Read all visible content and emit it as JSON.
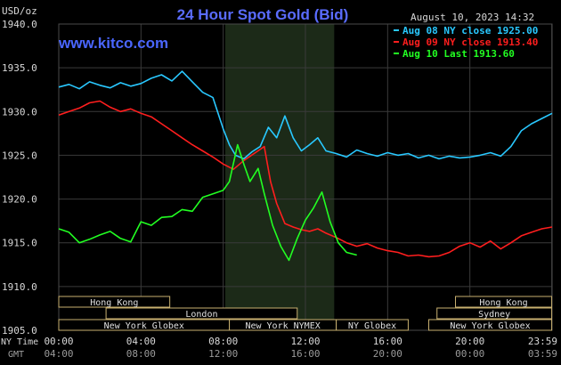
{
  "header": {
    "title": "24 Hour Spot Gold (Bid)",
    "date": "August 10, 2023 14:32",
    "watermark": "www.kitco.com",
    "unit": "USD/oz"
  },
  "colors": {
    "background": "#000000",
    "grid": "#3a3a3a",
    "axis_text": "#d8d8d8",
    "title": "#5a6cff",
    "watermark": "#4a66ff",
    "session_shade": "#1c2a18",
    "aug08": "#29c8ff",
    "aug09": "#ff1e1e",
    "aug10": "#22ff22",
    "market_box_border": "#c8b070"
  },
  "chart_data": {
    "type": "line",
    "title": "24 Hour Spot Gold (Bid)",
    "ylabel": "USD/oz",
    "ylim": [
      1905,
      1940
    ],
    "xlim": [
      0,
      24
    ],
    "grid": true,
    "legend": "top-right",
    "y_ticks": [
      "1940.0",
      "1935.0",
      "1930.0",
      "1925.0",
      "1920.0",
      "1915.0",
      "1910.0",
      "1905.0"
    ],
    "x_ticks": [
      0,
      4,
      8,
      12,
      16,
      20,
      23.983
    ],
    "x_tick_labels_ny": [
      "00:00",
      "04:00",
      "08:00",
      "12:00",
      "16:00",
      "20:00",
      "23:59"
    ],
    "x_tick_labels_gmt": [
      "04:00",
      "08:00",
      "12:00",
      "16:00",
      "20:00",
      "00:00",
      "03:59"
    ],
    "x_axis_names": {
      "ny": "NY Time",
      "gmt": "GMT"
    },
    "highlight_range": [
      8.1,
      13.4
    ],
    "series": [
      {
        "name": "Aug 08 NY close 1925.00",
        "color": "#29c8ff",
        "x": [
          0,
          0.5,
          1,
          1.5,
          2,
          2.5,
          3,
          3.5,
          4,
          4.5,
          5,
          5.5,
          6,
          6.5,
          7,
          7.5,
          8,
          8.3,
          8.6,
          9,
          9.4,
          9.8,
          10.2,
          10.6,
          11,
          11.4,
          11.8,
          12.2,
          12.6,
          13,
          13.5,
          14,
          14.5,
          15,
          15.5,
          16,
          16.5,
          17,
          17.5,
          18,
          18.5,
          19,
          19.5,
          20,
          20.5,
          21,
          21.5,
          22,
          22.5,
          23,
          23.5,
          24
        ],
        "y": [
          1932.8,
          1933.1,
          1932.6,
          1933.4,
          1933.0,
          1932.7,
          1933.3,
          1932.9,
          1933.2,
          1933.8,
          1934.2,
          1933.5,
          1934.6,
          1933.4,
          1932.2,
          1931.6,
          1928.0,
          1926.2,
          1925.0,
          1924.6,
          1925.4,
          1926.0,
          1928.2,
          1927.0,
          1929.5,
          1927.0,
          1925.5,
          1926.2,
          1927.0,
          1925.5,
          1925.2,
          1924.8,
          1925.6,
          1925.2,
          1924.9,
          1925.3,
          1925.0,
          1925.2,
          1924.7,
          1925.0,
          1924.6,
          1924.9,
          1924.7,
          1924.8,
          1925.0,
          1925.3,
          1924.9,
          1926.0,
          1927.8,
          1928.6,
          1929.2,
          1929.8
        ]
      },
      {
        "name": "Aug 09 NY close 1913.40",
        "color": "#ff1e1e",
        "x": [
          0,
          0.5,
          1,
          1.5,
          2,
          2.5,
          3,
          3.5,
          4,
          4.5,
          5,
          5.5,
          6,
          6.5,
          7,
          7.5,
          8,
          8.5,
          9,
          9.5,
          10,
          10.3,
          10.6,
          11,
          11.4,
          11.8,
          12.2,
          12.6,
          13,
          13.5,
          14,
          14.5,
          15,
          15.5,
          16,
          16.5,
          17,
          17.5,
          18,
          18.5,
          19,
          19.5,
          20,
          20.5,
          21,
          21.5,
          22,
          22.5,
          23,
          23.5,
          24
        ],
        "y": [
          1929.6,
          1930.0,
          1930.4,
          1931.0,
          1931.2,
          1930.5,
          1930.0,
          1930.3,
          1929.8,
          1929.4,
          1928.6,
          1927.8,
          1927.0,
          1926.2,
          1925.5,
          1924.8,
          1924.0,
          1923.4,
          1924.4,
          1925.2,
          1926.0,
          1922.0,
          1919.5,
          1917.2,
          1916.8,
          1916.5,
          1916.3,
          1916.6,
          1916.1,
          1915.6,
          1915.0,
          1914.6,
          1914.9,
          1914.4,
          1914.1,
          1913.9,
          1913.5,
          1913.6,
          1913.4,
          1913.5,
          1913.9,
          1914.6,
          1915.0,
          1914.5,
          1915.2,
          1914.3,
          1915.0,
          1915.8,
          1916.2,
          1916.6,
          1916.8
        ]
      },
      {
        "name": "Aug 10 Last 1913.60",
        "color": "#22ff22",
        "x": [
          0,
          0.5,
          1,
          1.5,
          2,
          2.5,
          3,
          3.5,
          4,
          4.5,
          5,
          5.5,
          6,
          6.5,
          7,
          7.5,
          8,
          8.3,
          8.7,
          9,
          9.3,
          9.7,
          10,
          10.4,
          10.8,
          11.2,
          11.6,
          12,
          12.4,
          12.8,
          13.2,
          13.6,
          14,
          14.5
        ],
        "y": [
          1916.6,
          1916.2,
          1915.0,
          1915.4,
          1915.9,
          1916.3,
          1915.5,
          1915.1,
          1917.4,
          1917.0,
          1917.9,
          1918.0,
          1918.8,
          1918.6,
          1920.2,
          1920.6,
          1921.0,
          1922.0,
          1926.2,
          1924.0,
          1922.0,
          1923.5,
          1920.6,
          1917.0,
          1914.6,
          1913.0,
          1915.5,
          1917.6,
          1919.0,
          1920.8,
          1917.4,
          1915.0,
          1913.9,
          1913.6
        ]
      }
    ],
    "market_sessions": [
      {
        "row": 1,
        "label": "Hong Kong",
        "start": 0,
        "end": 5.4
      },
      {
        "row": 1,
        "label": "Hong Kong",
        "start": 19.3,
        "end": 23.98
      },
      {
        "row": 2,
        "label": "London",
        "start": 2.3,
        "end": 11.6
      },
      {
        "row": 2,
        "label": "Sydney",
        "start": 18.4,
        "end": 23.98
      },
      {
        "row": 3,
        "label": "New York Globex",
        "start": 0,
        "end": 8.3
      },
      {
        "row": 3,
        "label": "New York NYMEX",
        "start": 8.3,
        "end": 13.5
      },
      {
        "row": 3,
        "label": "NY Globex",
        "start": 13.5,
        "end": 17.0
      },
      {
        "row": 3,
        "label": "New York Globex",
        "start": 18.0,
        "end": 23.98
      }
    ]
  }
}
